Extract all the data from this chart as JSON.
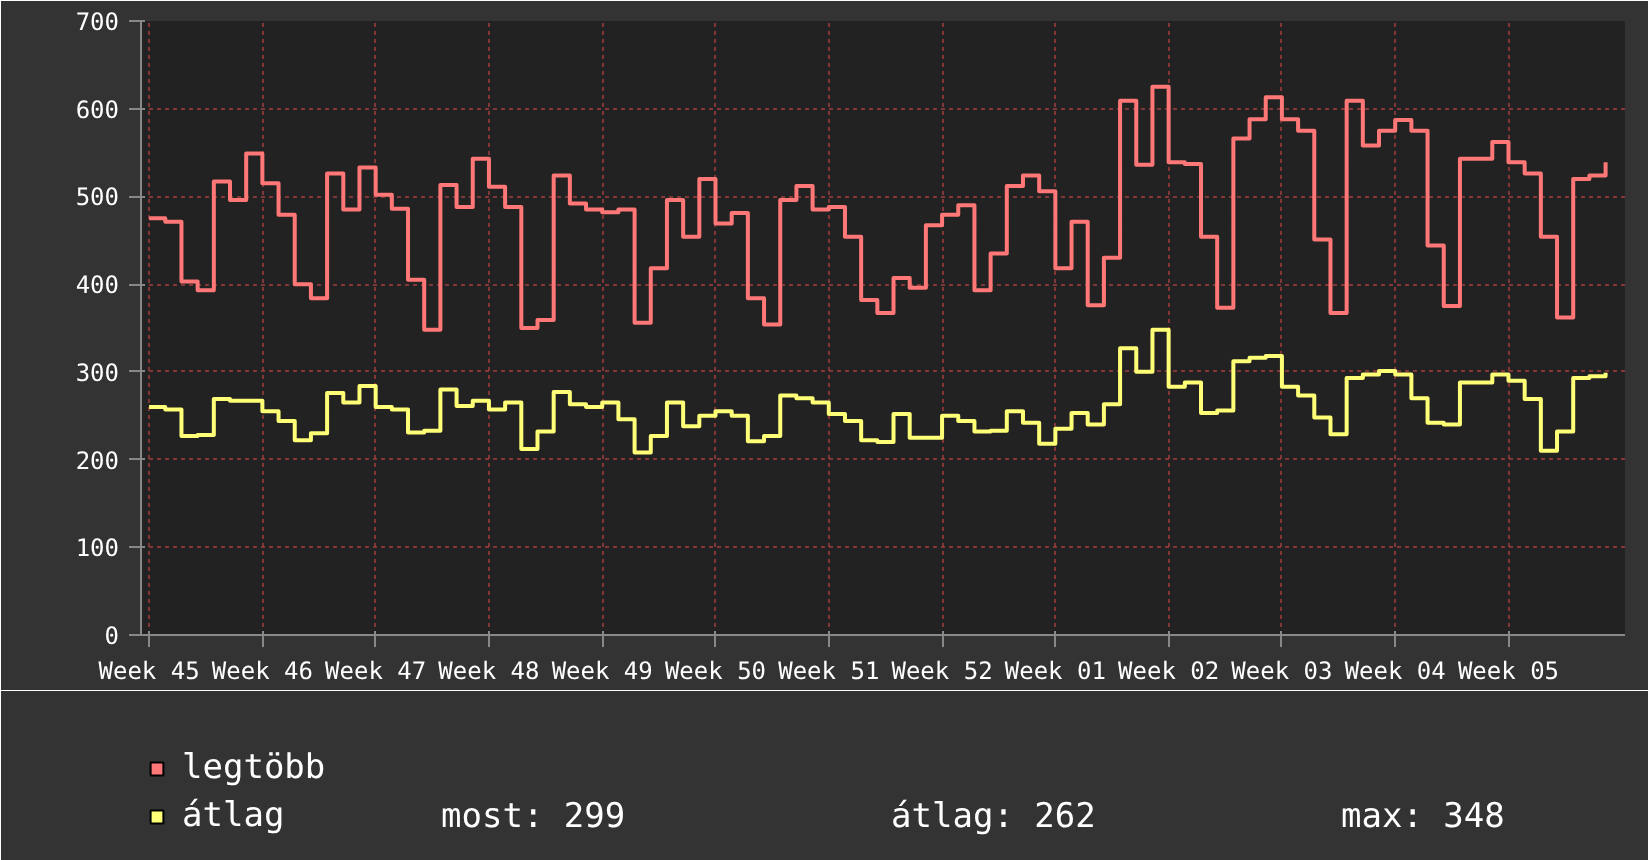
{
  "chart_data": {
    "type": "step",
    "categories": [
      "Week 45",
      null,
      null,
      null,
      null,
      null,
      null,
      "Week 46",
      null,
      null,
      null,
      null,
      null,
      null,
      "Week 47",
      null,
      null,
      null,
      null,
      null,
      null,
      "Week 48",
      null,
      null,
      null,
      null,
      null,
      null,
      "Week 49",
      null,
      null,
      null,
      null,
      null,
      null,
      "Week 50",
      null,
      null,
      null,
      null,
      null,
      null,
      "Week 51",
      null,
      null,
      null,
      null,
      null,
      null,
      "Week 52",
      null,
      null,
      null,
      null,
      null,
      null,
      "Week 01",
      null,
      null,
      null,
      null,
      null,
      null,
      "Week 02",
      null,
      null,
      null,
      null,
      null,
      null,
      "Week 03",
      null,
      null,
      null,
      null,
      null,
      null,
      "Week 04",
      null,
      null,
      null,
      null,
      null,
      null,
      "Week 05",
      null,
      null,
      null,
      null,
      null,
      null
    ],
    "series": [
      {
        "name": "legtöbb",
        "color": "#ff7777",
        "values": [
          475,
          471,
          403,
          393,
          517,
          496,
          549,
          515,
          479,
          400,
          384,
          526,
          485,
          533,
          502,
          486,
          405,
          348,
          513,
          488,
          543,
          511,
          488,
          350,
          359,
          524,
          492,
          485,
          482,
          485,
          356,
          418,
          496,
          454,
          520,
          469,
          481,
          384,
          354,
          496,
          512,
          485,
          488,
          454,
          382,
          367,
          407,
          396,
          467,
          479,
          490,
          393,
          435,
          512,
          524,
          506,
          418,
          471,
          376,
          430,
          609,
          536,
          625,
          539,
          537,
          454,
          373,
          566,
          588,
          613,
          588,
          575,
          451,
          367,
          609,
          558,
          575,
          587,
          575,
          444,
          375,
          543,
          543,
          562,
          539,
          526,
          454,
          362,
          520,
          524,
          539
        ]
      },
      {
        "name": "átlag",
        "color": "#ffff77",
        "values": [
          260,
          257,
          227,
          228,
          269,
          267,
          267,
          255,
          244,
          222,
          230,
          276,
          265,
          284,
          260,
          257,
          231,
          233,
          280,
          261,
          267,
          257,
          265,
          212,
          232,
          277,
          263,
          260,
          265,
          246,
          208,
          227,
          265,
          238,
          250,
          255,
          250,
          221,
          227,
          273,
          270,
          265,
          252,
          244,
          222,
          220,
          252,
          225,
          225,
          250,
          244,
          232,
          233,
          255,
          242,
          218,
          235,
          253,
          240,
          263,
          327,
          300,
          348,
          283,
          288,
          253,
          256,
          312,
          316,
          318,
          283,
          273,
          248,
          229,
          293,
          297,
          301,
          297,
          270,
          242,
          240,
          288,
          288,
          297,
          290,
          269,
          210,
          232,
          293,
          295,
          299
        ]
      }
    ],
    "ylim": [
      0,
      700
    ],
    "yticks": [
      0,
      100,
      200,
      300,
      400,
      500,
      600,
      700
    ],
    "grid": true,
    "legend": "bottom",
    "annotations": [
      "most: 299",
      "átlag: 262",
      "max: 348"
    ]
  }
}
